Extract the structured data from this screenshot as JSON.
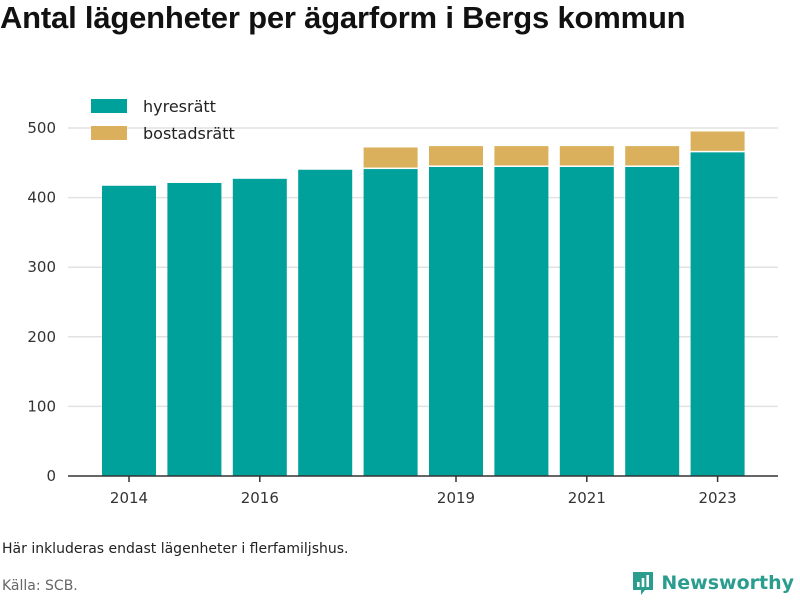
{
  "title": "Antal lägenheter per ägarform i Bergs kommun",
  "note": "Här inkluderas endast lägenheter i flerfamiljshus.",
  "source": "Källa: SCB.",
  "brand": "Newsworthy",
  "colors": {
    "hyresratt": "#00a19a",
    "bostadsratt": "#dbb05c",
    "grid": "#e2e2e2",
    "axis": "#333333",
    "brand": "#2a9d8f"
  },
  "chart_data": {
    "type": "bar",
    "stacked": true,
    "x": [
      2014,
      2015,
      2016,
      2017,
      2018,
      2019,
      2020,
      2021,
      2022,
      2023
    ],
    "xticks": [
      2014,
      2016,
      2019,
      2021,
      2023
    ],
    "series": [
      {
        "name": "hyresrätt",
        "color": "#00a19a",
        "values": [
          417,
          421,
          427,
          440,
          441,
          444,
          444,
          444,
          444,
          465
        ]
      },
      {
        "name": "bostadsrätt",
        "color": "#dbb05c",
        "values": [
          0,
          0,
          0,
          0,
          31,
          30,
          30,
          30,
          30,
          30
        ]
      }
    ],
    "ylim": [
      0,
      500
    ],
    "yticks": [
      0,
      100,
      200,
      300,
      400,
      500
    ],
    "grid": true,
    "legend": "top-left"
  }
}
